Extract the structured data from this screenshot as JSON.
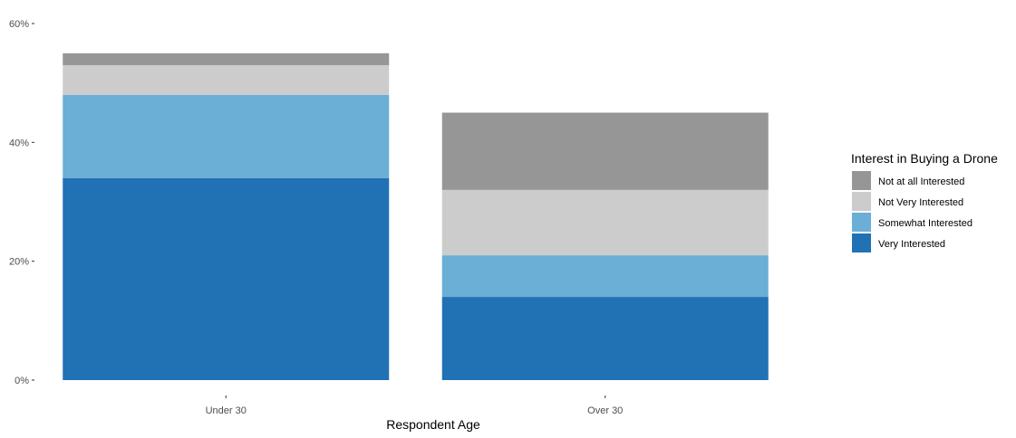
{
  "chart_data": {
    "type": "bar",
    "stacked": true,
    "title": "",
    "xlabel": "Respondent Age",
    "ylabel": "",
    "categories": [
      "Under 30",
      "Over 30"
    ],
    "ylim": [
      0,
      60
    ],
    "y_ticks": [
      0,
      20,
      40,
      60
    ],
    "y_tick_labels": [
      "0%",
      "20%",
      "40%",
      "60%"
    ],
    "grid": false,
    "legend": {
      "title": "Interest in Buying a Drone",
      "position": "right"
    },
    "series": [
      {
        "name": "Very Interested",
        "color": "#2171b5",
        "values": [
          34,
          14
        ]
      },
      {
        "name": "Somewhat Interested",
        "color": "#6baed6",
        "values": [
          14,
          7
        ]
      },
      {
        "name": "Not Very Interested",
        "color": "#cccccc",
        "values": [
          5,
          11
        ]
      },
      {
        "name": "Not at all Interested",
        "color": "#969696",
        "values": [
          2,
          13
        ]
      }
    ],
    "legend_order": [
      "Not at all Interested",
      "Not Very Interested",
      "Somewhat Interested",
      "Very Interested"
    ]
  }
}
